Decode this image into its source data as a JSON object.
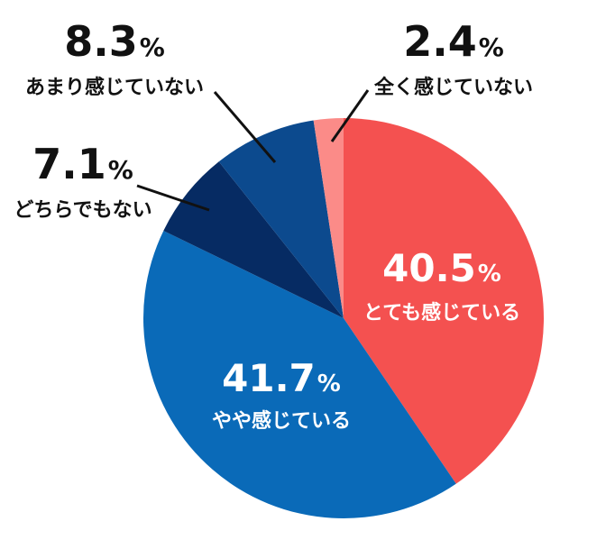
{
  "chart_data": {
    "type": "pie",
    "start_angle_deg": 0,
    "direction": "clockwise",
    "slices": [
      {
        "label": "とても感じている",
        "value": 40.5,
        "value_text": "40.5",
        "unit": "%",
        "color": "#f45150",
        "label_placement": "inside"
      },
      {
        "label": "やや感じている",
        "value": 41.7,
        "value_text": "41.7",
        "unit": "%",
        "color": "#0a6ab8",
        "label_placement": "inside"
      },
      {
        "label": "どちらでもない",
        "value": 7.1,
        "value_text": "7.1",
        "unit": "%",
        "color": "#062b63",
        "label_placement": "outside"
      },
      {
        "label": "あまり感じていない",
        "value": 8.3,
        "value_text": "8.3",
        "unit": "%",
        "color": "#0c4a8e",
        "label_placement": "outside"
      },
      {
        "label": "全く感じていない",
        "value": 2.4,
        "value_text": "2.4",
        "unit": "%",
        "color": "#fb8b88",
        "label_placement": "outside"
      }
    ]
  }
}
